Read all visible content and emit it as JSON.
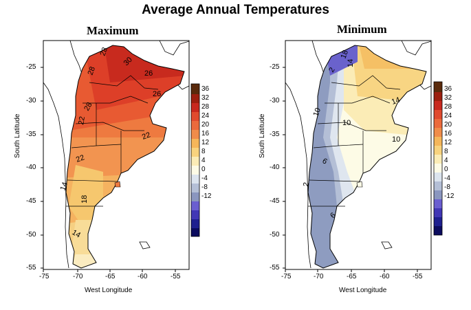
{
  "title": "Average Annual Temperatures",
  "panels": [
    {
      "id": "max",
      "title": "Maximum",
      "xlabel": "West Longitude",
      "ylabel": "South Latitude",
      "xticks": [
        "-75",
        "-70",
        "-65",
        "-60",
        "-55"
      ],
      "yticks": [
        "-25",
        "-30",
        "-35",
        "-40",
        "-45",
        "-50",
        "-55"
      ],
      "contour_labels": [
        "30",
        "28",
        "26",
        "26",
        "22",
        "28",
        "22",
        "28",
        "14",
        "18",
        "22",
        "14"
      ],
      "colorbar": [
        "36",
        "32",
        "28",
        "24",
        "20",
        "16",
        "12",
        "8",
        "4",
        "0",
        "-4",
        "-8",
        "-12"
      ]
    },
    {
      "id": "min",
      "title": "Minimum",
      "xlabel": "West Longitude",
      "ylabel": "South Latitude",
      "xticks": [
        "-75",
        "-70",
        "-65",
        "-60",
        "-55"
      ],
      "yticks": [
        "-25",
        "-30",
        "-35",
        "-40",
        "-45",
        "-50",
        "-55"
      ],
      "contour_labels": [
        "14",
        "10",
        "10",
        "10",
        "6",
        "6",
        "2",
        "2",
        "14",
        "18"
      ],
      "colorbar": [
        "36",
        "32",
        "28",
        "24",
        "20",
        "16",
        "12",
        "8",
        "4",
        "0",
        "-4",
        "-8",
        "-12"
      ]
    }
  ],
  "colorbar_colors": [
    "#5a2a0c",
    "#9c1f0f",
    "#c8281e",
    "#e04a2e",
    "#eb6a3c",
    "#f08c4a",
    "#f5b65a",
    "#f8d37e",
    "#fbecb6",
    "#fdfbe6",
    "#dce4ee",
    "#b4bfd6",
    "#8a96bf",
    "#6a5ed0",
    "#4136b5",
    "#1e1f8f",
    "#0b0b5e"
  ]
}
